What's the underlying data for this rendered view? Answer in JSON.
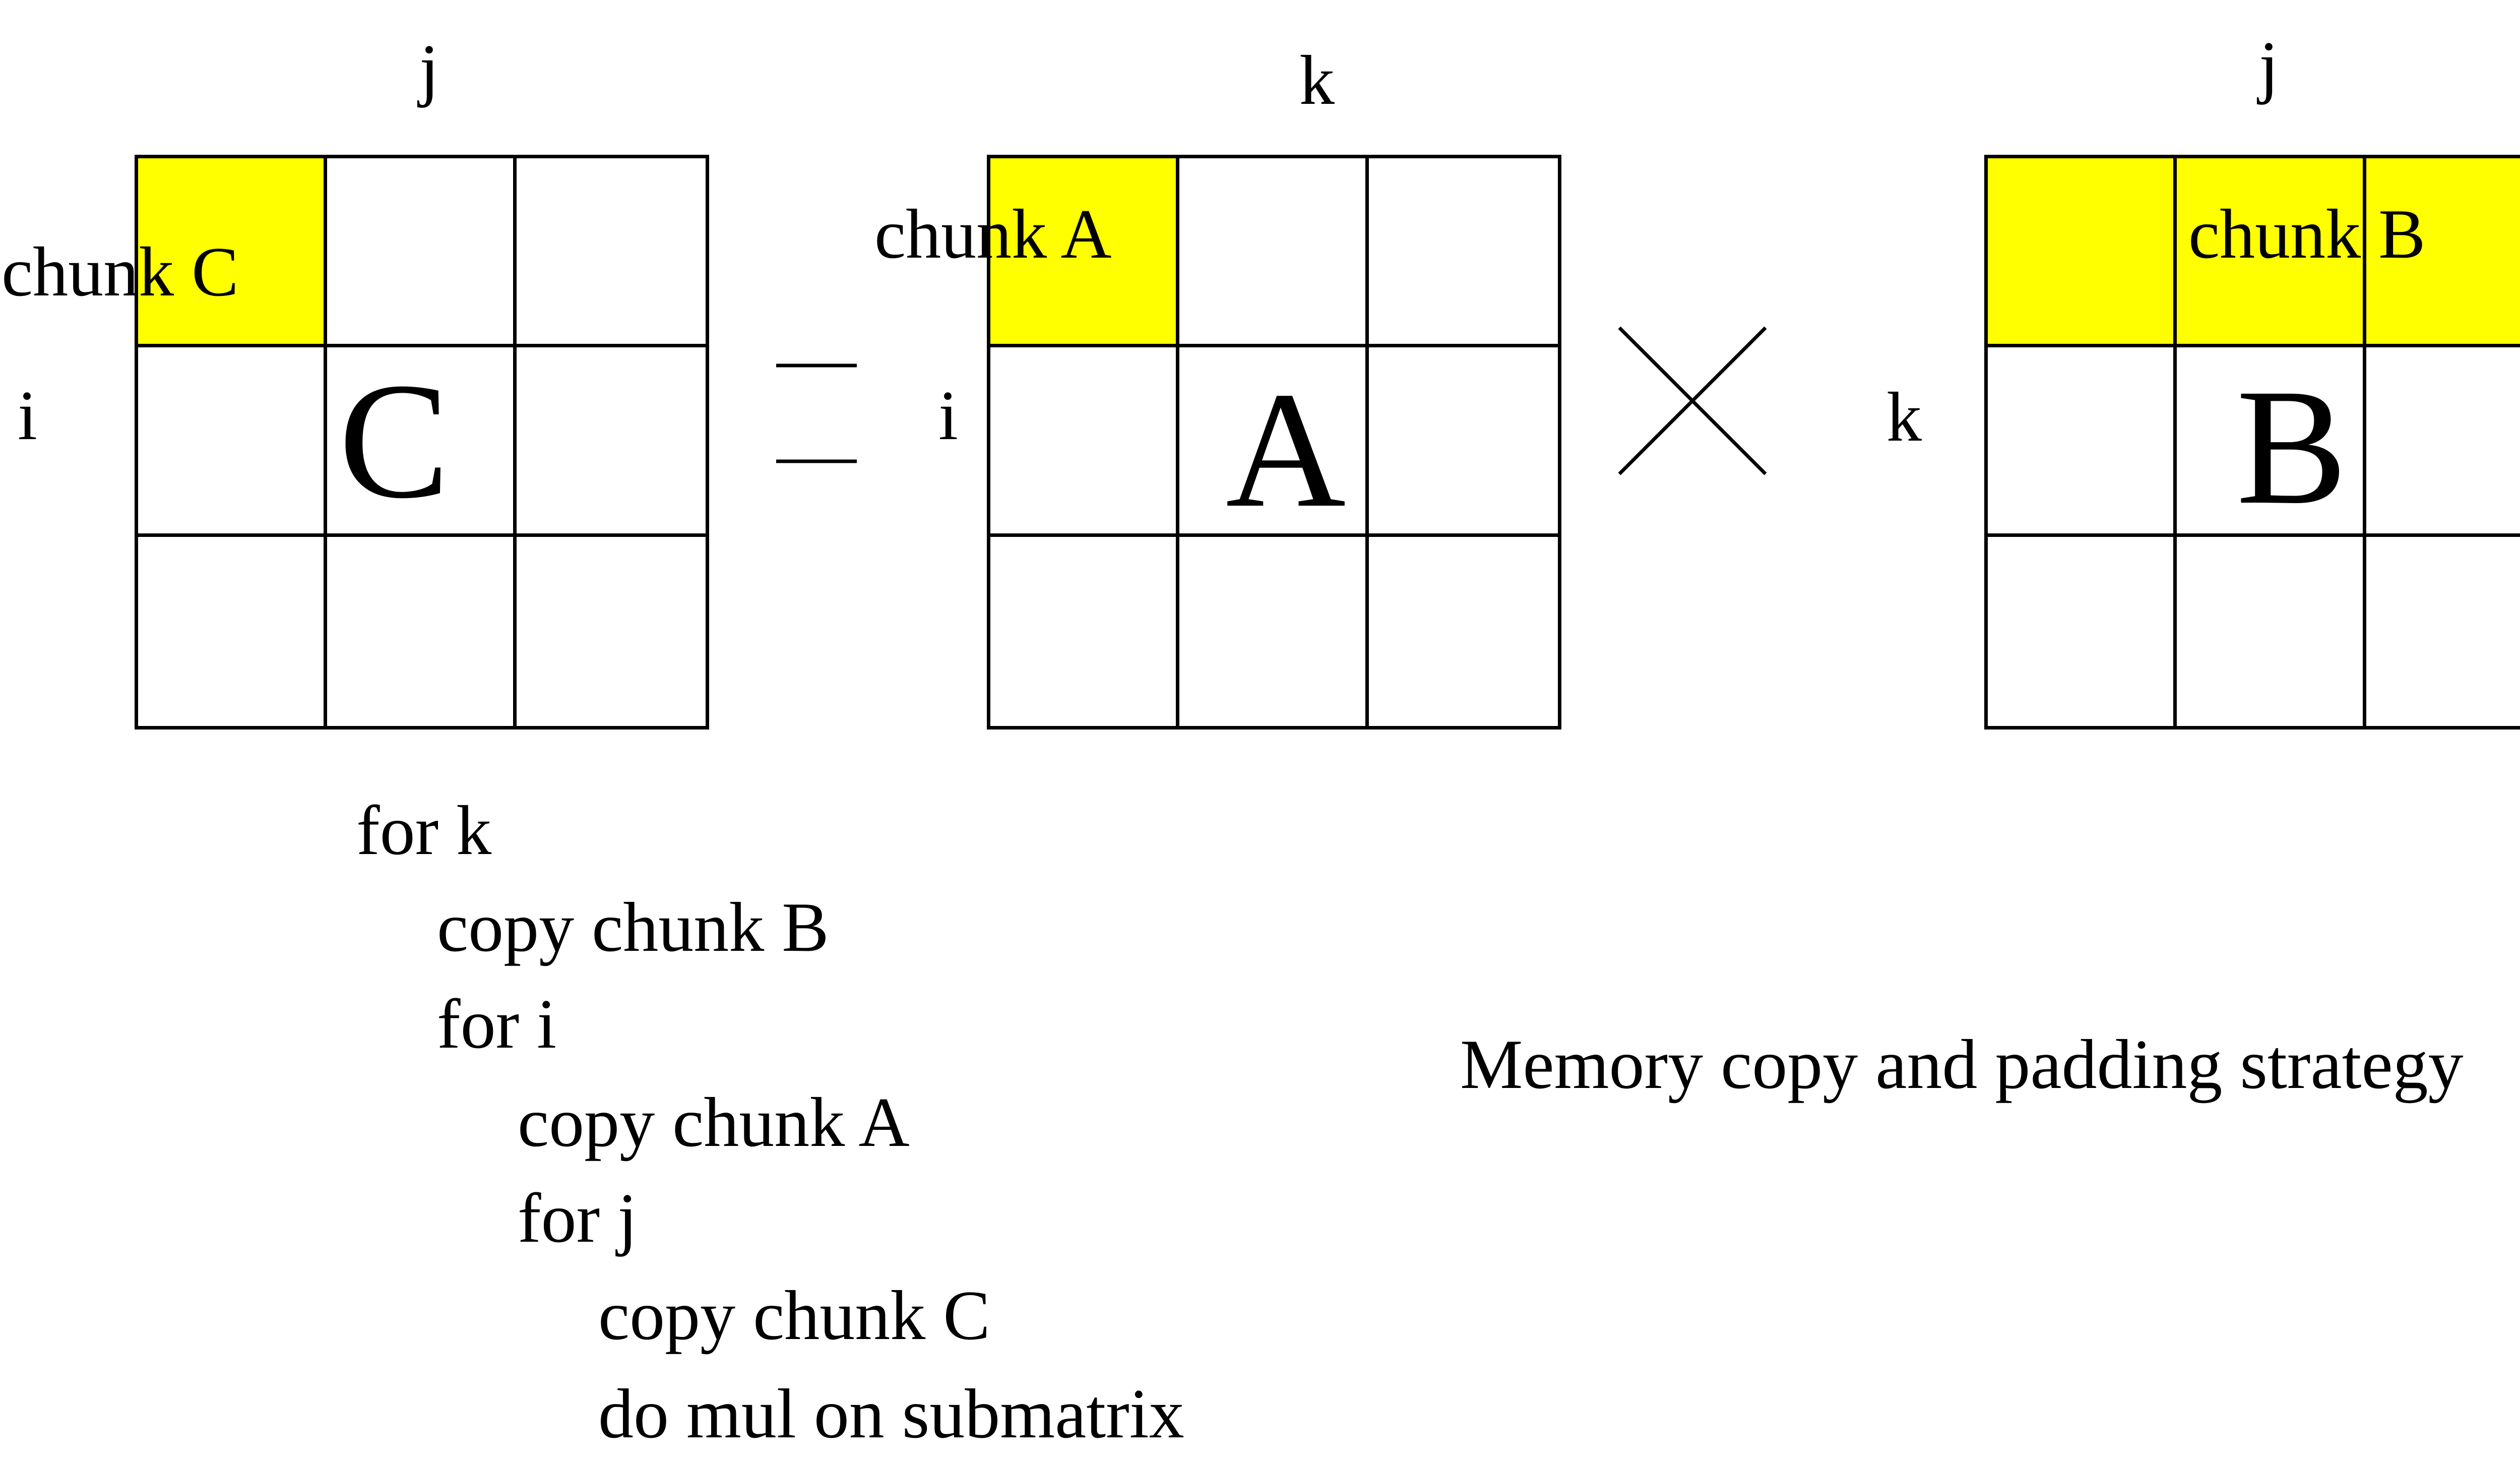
{
  "matrices": {
    "c": {
      "name": "C",
      "row_index": "i",
      "col_index": "j",
      "chunk_label": "chunk C",
      "highlight": "top-left cell"
    },
    "a": {
      "name": "A",
      "row_index": "i",
      "col_index": "k",
      "chunk_label": "chunk A",
      "highlight": "top-left cell"
    },
    "b": {
      "name": "B",
      "row_index": "k",
      "col_index": "j",
      "chunk_label": "chunk B",
      "highlight": "top row"
    }
  },
  "operators": {
    "equals": "equals-sign",
    "times": "times-sign"
  },
  "pseudocode": [
    "for k",
    "copy chunk B",
    "for i",
    "copy chunk A",
    "for j",
    "copy chunk C",
    "do mul on submatrix"
  ],
  "caption": "Memory copy and padding strategy",
  "colors": {
    "highlight": "#ffff00",
    "line": "#000000",
    "background": "#ffffff"
  }
}
